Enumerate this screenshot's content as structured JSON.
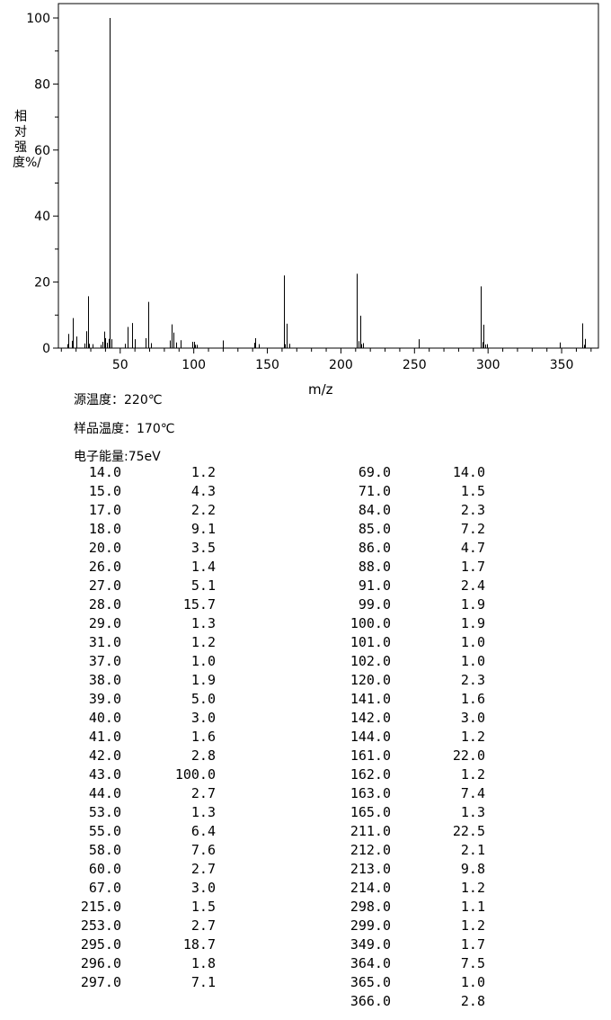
{
  "chart_data": {
    "type": "bar",
    "ylabel": "相对强度%/",
    "xlabel": "m/z",
    "xlim": [
      8,
      375
    ],
    "ylim": [
      0,
      100
    ],
    "x_ticks": [
      50,
      100,
      150,
      200,
      250,
      300,
      350
    ],
    "y_ticks": [
      0,
      20,
      40,
      60,
      80,
      100
    ],
    "grid": false,
    "peaks": [
      [
        14,
        1.2
      ],
      [
        15,
        4.3
      ],
      [
        17,
        2.2
      ],
      [
        18,
        9.1
      ],
      [
        20,
        3.5
      ],
      [
        26,
        1.4
      ],
      [
        27,
        5.1
      ],
      [
        28,
        15.7
      ],
      [
        29,
        1.3
      ],
      [
        31,
        1.2
      ],
      [
        37,
        1.0
      ],
      [
        38,
        1.9
      ],
      [
        39,
        5.0
      ],
      [
        40,
        3.0
      ],
      [
        41,
        1.6
      ],
      [
        42,
        2.8
      ],
      [
        43,
        100.0
      ],
      [
        44,
        2.7
      ],
      [
        53,
        1.3
      ],
      [
        55,
        6.4
      ],
      [
        58,
        7.6
      ],
      [
        60,
        2.7
      ],
      [
        67,
        3.0
      ],
      [
        69,
        14.0
      ],
      [
        71,
        1.5
      ],
      [
        84,
        2.3
      ],
      [
        85,
        7.2
      ],
      [
        86,
        4.7
      ],
      [
        88,
        1.7
      ],
      [
        91,
        2.4
      ],
      [
        99,
        1.9
      ],
      [
        100,
        1.9
      ],
      [
        101,
        1.0
      ],
      [
        102,
        1.0
      ],
      [
        120,
        2.3
      ],
      [
        141,
        1.6
      ],
      [
        142,
        3.0
      ],
      [
        144,
        1.2
      ],
      [
        161,
        22.0
      ],
      [
        162,
        1.2
      ],
      [
        163,
        7.4
      ],
      [
        165,
        1.3
      ],
      [
        211,
        22.5
      ],
      [
        212,
        2.1
      ],
      [
        213,
        9.8
      ],
      [
        214,
        1.2
      ],
      [
        215,
        1.5
      ],
      [
        253,
        2.7
      ],
      [
        295,
        18.7
      ],
      [
        296,
        1.8
      ],
      [
        297,
        7.1
      ],
      [
        298,
        1.1
      ],
      [
        299,
        1.2
      ],
      [
        349,
        1.7
      ],
      [
        364,
        7.5
      ],
      [
        365,
        1.0
      ],
      [
        366,
        2.8
      ]
    ]
  },
  "conditions": [
    "源温度：220℃",
    "样品温度：170℃",
    "电子能量:75eV"
  ],
  "table_left": [
    [
      "14.0",
      "1.2"
    ],
    [
      "15.0",
      "4.3"
    ],
    [
      "17.0",
      "2.2"
    ],
    [
      "18.0",
      "9.1"
    ],
    [
      "20.0",
      "3.5"
    ],
    [
      "26.0",
      "1.4"
    ],
    [
      "27.0",
      "5.1"
    ],
    [
      "28.0",
      "15.7"
    ],
    [
      "29.0",
      "1.3"
    ],
    [
      "31.0",
      "1.2"
    ],
    [
      "37.0",
      "1.0"
    ],
    [
      "38.0",
      "1.9"
    ],
    [
      "39.0",
      "5.0"
    ],
    [
      "40.0",
      "3.0"
    ],
    [
      "41.0",
      "1.6"
    ],
    [
      "42.0",
      "2.8"
    ],
    [
      "43.0",
      "100.0"
    ],
    [
      "44.0",
      "2.7"
    ],
    [
      "53.0",
      "1.3"
    ],
    [
      "55.0",
      "6.4"
    ],
    [
      "58.0",
      "7.6"
    ],
    [
      "60.0",
      "2.7"
    ],
    [
      "67.0",
      "3.0"
    ],
    [
      "215.0",
      "1.5"
    ],
    [
      "253.0",
      "2.7"
    ],
    [
      "295.0",
      "18.7"
    ],
    [
      "296.0",
      "1.8"
    ],
    [
      "297.0",
      "7.1"
    ]
  ],
  "table_right": [
    [
      "69.0",
      "14.0"
    ],
    [
      "71.0",
      "1.5"
    ],
    [
      "84.0",
      "2.3"
    ],
    [
      "85.0",
      "7.2"
    ],
    [
      "86.0",
      "4.7"
    ],
    [
      "88.0",
      "1.7"
    ],
    [
      "91.0",
      "2.4"
    ],
    [
      "99.0",
      "1.9"
    ],
    [
      "100.0",
      "1.9"
    ],
    [
      "101.0",
      "1.0"
    ],
    [
      "102.0",
      "1.0"
    ],
    [
      "120.0",
      "2.3"
    ],
    [
      "141.0",
      "1.6"
    ],
    [
      "142.0",
      "3.0"
    ],
    [
      "144.0",
      "1.2"
    ],
    [
      "161.0",
      "22.0"
    ],
    [
      "162.0",
      "1.2"
    ],
    [
      "163.0",
      "7.4"
    ],
    [
      "165.0",
      "1.3"
    ],
    [
      "211.0",
      "22.5"
    ],
    [
      "212.0",
      "2.1"
    ],
    [
      "213.0",
      "9.8"
    ],
    [
      "214.0",
      "1.2"
    ],
    [
      "298.0",
      "1.1"
    ],
    [
      "299.0",
      "1.2"
    ],
    [
      "349.0",
      "1.7"
    ],
    [
      "364.0",
      "7.5"
    ],
    [
      "365.0",
      "1.0"
    ],
    [
      "366.0",
      "2.8"
    ]
  ]
}
